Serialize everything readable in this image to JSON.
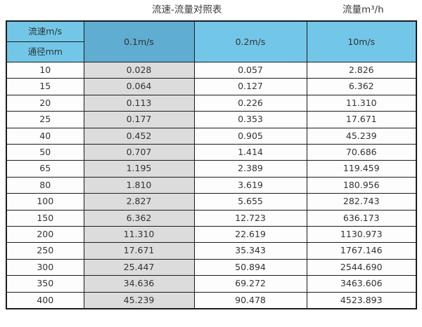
{
  "header": {
    "title": "流速-流量对照表",
    "unit_label": "流量m³/h"
  },
  "table": {
    "corner_top": "流速m/s",
    "corner_bottom": "通径mm",
    "columns": [
      "0.1m/s",
      "0.2m/s",
      "10m/s"
    ]
  },
  "chart_data": {
    "type": "table",
    "title": "流速-流量对照表",
    "unit": "流量m³/h",
    "corner_labels": {
      "velocity": "流速m/s",
      "diameter": "通径mm"
    },
    "columns": [
      "通径mm",
      "0.1m/s",
      "0.2m/s",
      "10m/s"
    ],
    "rows": [
      {
        "diameter": "10",
        "values": [
          "0.028",
          "0.057",
          "2.826"
        ]
      },
      {
        "diameter": "15",
        "values": [
          "0.064",
          "0.127",
          "6.362"
        ]
      },
      {
        "diameter": "20",
        "values": [
          "0.113",
          "0.226",
          "11.310"
        ]
      },
      {
        "diameter": "25",
        "values": [
          "0.177",
          "0.353",
          "17.671"
        ]
      },
      {
        "diameter": "40",
        "values": [
          "0.452",
          "0.905",
          "45.239"
        ]
      },
      {
        "diameter": "50",
        "values": [
          "0.707",
          "1.414",
          "70.686"
        ]
      },
      {
        "diameter": "65",
        "values": [
          "1.195",
          "2.389",
          "119.459"
        ]
      },
      {
        "diameter": "80",
        "values": [
          "1.810",
          "3.619",
          "180.956"
        ]
      },
      {
        "diameter": "100",
        "values": [
          "2.827",
          "5.655",
          "282.743"
        ]
      },
      {
        "diameter": "150",
        "values": [
          "6.362",
          "12.723",
          "636.173"
        ]
      },
      {
        "diameter": "200",
        "values": [
          "11.310",
          "22.619",
          "1130.973"
        ]
      },
      {
        "diameter": "250",
        "values": [
          "17.671",
          "35.343",
          "1767.146"
        ]
      },
      {
        "diameter": "300",
        "values": [
          "25.447",
          "50.894",
          "2544.690"
        ]
      },
      {
        "diameter": "350",
        "values": [
          "34.636",
          "69.272",
          "3463.606"
        ]
      },
      {
        "diameter": "400",
        "values": [
          "45.239",
          "90.478",
          "4523.893"
        ]
      }
    ]
  },
  "colors": {
    "header_light_blue": "#72c7e8",
    "header_dark_blue": "#5fadd0",
    "highlight_column_gray": "#dcdcdc",
    "border": "#1c1c1c",
    "text": "#333333"
  }
}
